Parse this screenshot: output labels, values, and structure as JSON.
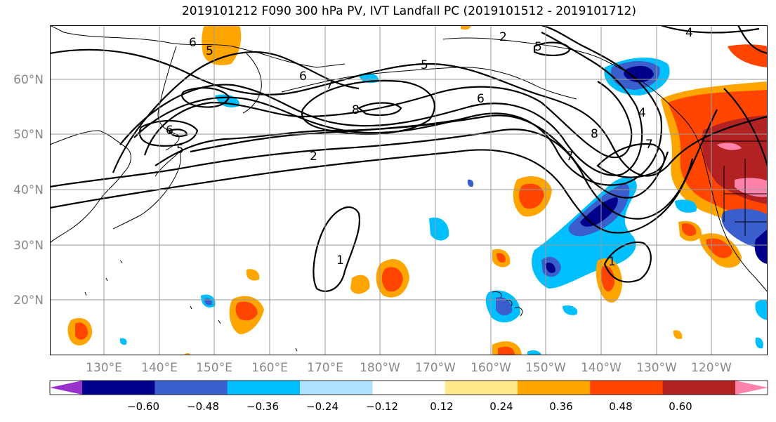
{
  "title": "2019101212 F090 300 hPa PV, IVT Landfall PC (2019101512 - 2019101712)",
  "lat_labels": [
    {
      "text": "60°N"
    },
    {
      "text": "50°N"
    },
    {
      "text": "40°N"
    },
    {
      "text": "30°N"
    },
    {
      "text": "20°N"
    }
  ],
  "lon_labels": [
    {
      "text": "130°E"
    },
    {
      "text": "140°E"
    },
    {
      "text": "150°E"
    },
    {
      "text": "160°E"
    },
    {
      "text": "170°E"
    },
    {
      "text": "180°W"
    },
    {
      "text": "170°W"
    },
    {
      "text": "160°W"
    },
    {
      "text": "150°W"
    },
    {
      "text": "140°W"
    },
    {
      "text": "130°W"
    },
    {
      "text": "120°W"
    }
  ],
  "contour_labels": [
    "6",
    "5",
    "6",
    "7",
    "8",
    "5",
    "6",
    "7",
    "8",
    "2",
    "2",
    "4",
    "5",
    "6",
    "5",
    "1",
    "1",
    "4",
    "7"
  ],
  "colorbar": {
    "colors": [
      "#9932cc",
      "#00008b",
      "#3a5fcd",
      "#00bfff",
      "#b0e2ff",
      "#ffffff",
      "#ffe98a",
      "#ffa500",
      "#ff4500",
      "#b22222",
      "#ff82ab"
    ],
    "ticks": [
      "−0.60",
      "−0.48",
      "−0.36",
      "−0.24",
      "−0.12",
      "0.12",
      "0.24",
      "0.36",
      "0.48",
      "0.60"
    ]
  }
}
